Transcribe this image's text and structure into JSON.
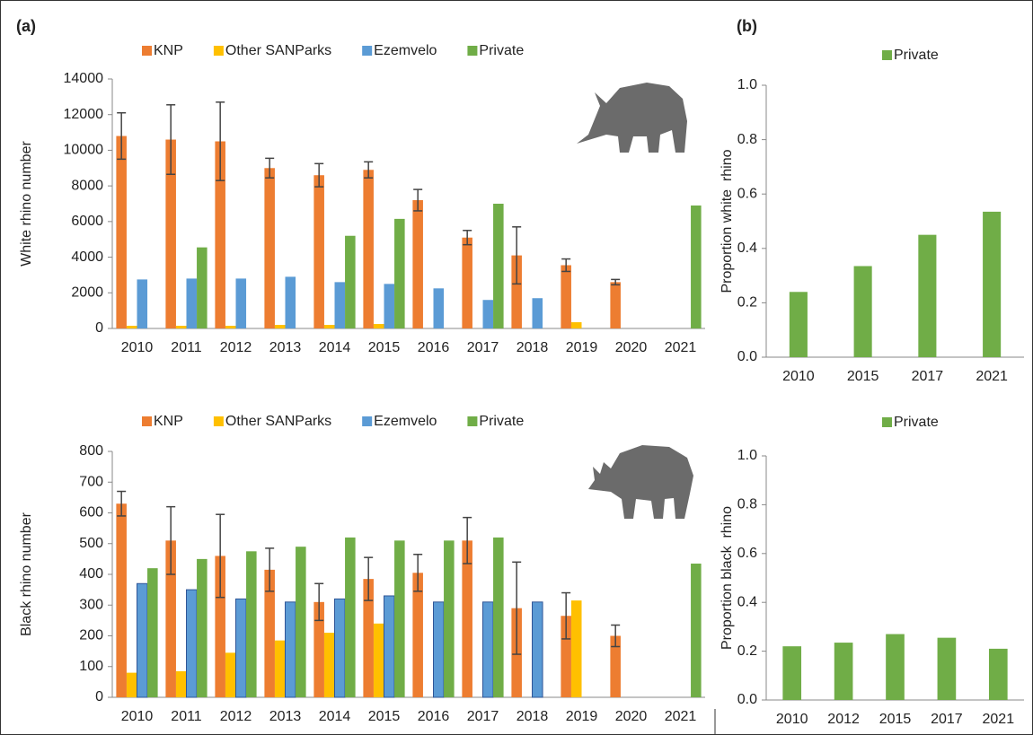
{
  "panel_labels": [
    "(a)",
    "(b)"
  ],
  "chart_data": [
    {
      "type": "bar",
      "ylabel": "White rhino number",
      "categories": [
        "2010",
        "2011",
        "2012",
        "2013",
        "2014",
        "2015",
        "2016",
        "2017",
        "2018",
        "2019",
        "2020",
        "2021"
      ],
      "series": [
        {
          "name": "KNP",
          "color": "#ed7d31",
          "values": [
            10800,
            10600,
            10500,
            9000,
            8600,
            8900,
            7200,
            5100,
            4100,
            3550,
            2600,
            null
          ],
          "errors": [
            1300,
            1950,
            2200,
            550,
            650,
            450,
            600,
            400,
            1600,
            350,
            150,
            null
          ]
        },
        {
          "name": "Other SANParks",
          "color": "#ffc000",
          "values": [
            150,
            150,
            150,
            200,
            200,
            250,
            null,
            null,
            null,
            350,
            null,
            null
          ]
        },
        {
          "name": "Ezemvelo",
          "color": "#5b9bd5",
          "values": [
            2750,
            2800,
            2800,
            2900,
            2600,
            2500,
            2250,
            1600,
            1700,
            null,
            null,
            null
          ]
        },
        {
          "name": "Private",
          "color": "#70ad47",
          "values": [
            null,
            4550,
            null,
            null,
            5200,
            6150,
            null,
            7000,
            null,
            null,
            null,
            6900
          ]
        }
      ],
      "ylim": [
        0,
        14000
      ],
      "yticks": [
        0,
        2000,
        4000,
        6000,
        8000,
        10000,
        12000,
        14000
      ]
    },
    {
      "type": "bar",
      "ylabel": "Proportion white  rhino",
      "categories": [
        "2010",
        "2015",
        "2017",
        "2021"
      ],
      "series": [
        {
          "name": "Private",
          "color": "#70ad47",
          "values": [
            0.24,
            0.335,
            0.45,
            0.535
          ]
        }
      ],
      "ylim": [
        0,
        1
      ],
      "yticks": [
        {
          "value": 0,
          "label": "0.0"
        },
        0.2,
        0.4,
        0.6,
        0.8,
        {
          "value": 1,
          "label": "1.0"
        }
      ]
    },
    {
      "type": "bar",
      "ylabel": "Black rhino number",
      "categories": [
        "2010",
        "2011",
        "2012",
        "2013",
        "2014",
        "2015",
        "2016",
        "2017",
        "2018",
        "2019",
        "2020",
        "2021"
      ],
      "series": [
        {
          "name": "KNP",
          "color": "#ed7d31",
          "values": [
            630,
            510,
            460,
            415,
            310,
            385,
            405,
            510,
            290,
            265,
            200,
            null
          ],
          "errors": [
            40,
            110,
            135,
            70,
            60,
            70,
            60,
            75,
            150,
            75,
            35,
            null
          ]
        },
        {
          "name": "Other SANParks",
          "color": "#ffc000",
          "values": [
            80,
            85,
            145,
            185,
            210,
            240,
            null,
            null,
            null,
            315,
            null,
            null
          ]
        },
        {
          "name": "Ezemvelo",
          "color": "#5b9bd5",
          "values": [
            370,
            350,
            320,
            310,
            320,
            330,
            310,
            310,
            310,
            null,
            null,
            null
          ]
        },
        {
          "name": "Private",
          "color": "#70ad47",
          "values": [
            420,
            450,
            475,
            490,
            520,
            510,
            510,
            520,
            null,
            null,
            null,
            435
          ]
        }
      ],
      "ylim": [
        0,
        800
      ],
      "yticks": [
        0,
        100,
        200,
        300,
        400,
        500,
        600,
        700,
        800
      ]
    },
    {
      "type": "bar",
      "ylabel": "Proportion black  rhino",
      "categories": [
        "2010",
        "2012",
        "2015",
        "2017",
        "2021"
      ],
      "series": [
        {
          "name": "Private",
          "color": "#70ad47",
          "values": [
            0.22,
            0.235,
            0.27,
            0.255,
            0.21
          ]
        }
      ],
      "ylim": [
        0,
        1
      ],
      "yticks": [
        {
          "value": 0,
          "label": "0.0"
        },
        0.2,
        0.4,
        0.6,
        0.8,
        {
          "value": 1,
          "label": "1.0"
        }
      ]
    }
  ]
}
